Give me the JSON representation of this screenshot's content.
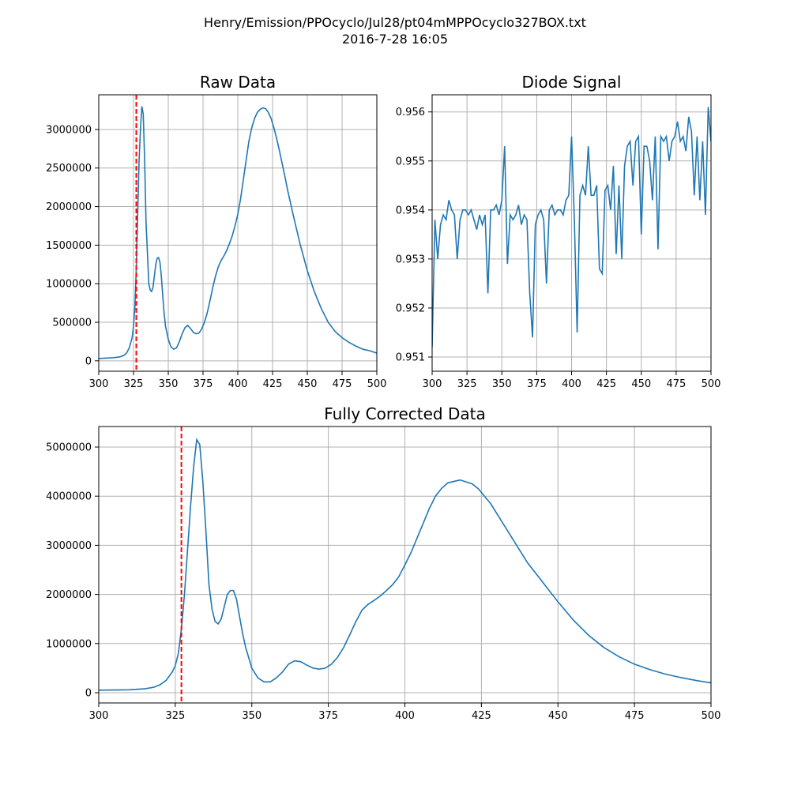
{
  "suptitle": [
    "Henry/Emission/PPOcyclo/Jul28/pt04mMPPOcyclo327BOX.txt",
    "2016-7-28     16:05"
  ],
  "chart_data": [
    {
      "type": "line",
      "title": "Raw Data",
      "color": "#1f77b4",
      "grid": true,
      "vline": {
        "x": 327,
        "color": "#ff0000"
      },
      "x": [
        300,
        310,
        315,
        318,
        320,
        322,
        324,
        325,
        326,
        327,
        328,
        329,
        330,
        331,
        332,
        333,
        334,
        335,
        336,
        337,
        338,
        339,
        340,
        341,
        342,
        343,
        344,
        345,
        346,
        347,
        348,
        350,
        352,
        354,
        356,
        358,
        360,
        362,
        364,
        366,
        368,
        370,
        372,
        374,
        376,
        378,
        380,
        382,
        384,
        386,
        388,
        390,
        392,
        394,
        396,
        398,
        400,
        402,
        404,
        406,
        408,
        410,
        412,
        414,
        416,
        418,
        420,
        422,
        424,
        426,
        428,
        430,
        432,
        434,
        436,
        438,
        440,
        445,
        450,
        455,
        460,
        465,
        470,
        475,
        480,
        485,
        490,
        495,
        500
      ],
      "values": [
        30000,
        40000,
        50000,
        70000,
        100000,
        170000,
        300000,
        450000,
        700000,
        1200000,
        1900000,
        2600000,
        3000000,
        3300000,
        3200000,
        2600000,
        1800000,
        1400000,
        1000000,
        920000,
        900000,
        950000,
        1100000,
        1250000,
        1330000,
        1340000,
        1280000,
        1100000,
        850000,
        620000,
        450000,
        280000,
        180000,
        150000,
        170000,
        250000,
        350000,
        430000,
        460000,
        420000,
        370000,
        350000,
        360000,
        410000,
        500000,
        620000,
        780000,
        950000,
        1100000,
        1220000,
        1300000,
        1360000,
        1430000,
        1520000,
        1620000,
        1750000,
        1900000,
        2100000,
        2350000,
        2600000,
        2850000,
        3020000,
        3140000,
        3220000,
        3260000,
        3280000,
        3270000,
        3220000,
        3140000,
        3020000,
        2880000,
        2720000,
        2550000,
        2380000,
        2200000,
        2040000,
        1880000,
        1500000,
        1170000,
        900000,
        680000,
        500000,
        380000,
        300000,
        240000,
        190000,
        150000,
        130000,
        100000
      ],
      "xlim": [
        300,
        500
      ],
      "xticks": [
        300,
        325,
        350,
        375,
        400,
        425,
        450,
        475,
        500
      ],
      "ylim": [
        -135000,
        3450000
      ],
      "yticks": [
        0,
        500000,
        1000000,
        1500000,
        2000000,
        2500000,
        3000000
      ]
    },
    {
      "type": "line",
      "title": "Diode Signal",
      "color": "#1f77b4",
      "grid": true,
      "x": [
        300,
        302,
        304,
        306,
        308,
        310,
        312,
        314,
        316,
        318,
        320,
        322,
        324,
        326,
        328,
        330,
        332,
        334,
        336,
        338,
        340,
        342,
        344,
        346,
        348,
        350,
        352,
        354,
        356,
        358,
        360,
        362,
        364,
        366,
        368,
        370,
        372,
        374,
        376,
        378,
        380,
        382,
        384,
        386,
        388,
        390,
        392,
        394,
        396,
        398,
        400,
        402,
        404,
        406,
        408,
        410,
        412,
        414,
        416,
        418,
        420,
        422,
        424,
        426,
        428,
        430,
        432,
        434,
        436,
        438,
        440,
        442,
        444,
        446,
        448,
        450,
        452,
        454,
        456,
        458,
        460,
        462,
        464,
        466,
        468,
        470,
        472,
        474,
        476,
        478,
        480,
        482,
        484,
        486,
        488,
        490,
        492,
        494,
        496,
        498,
        500
      ],
      "values": [
        0.9512,
        0.9538,
        0.953,
        0.9537,
        0.9539,
        0.9538,
        0.9542,
        0.954,
        0.9539,
        0.953,
        0.9538,
        0.954,
        0.954,
        0.9539,
        0.954,
        0.9538,
        0.9536,
        0.9539,
        0.9537,
        0.9539,
        0.9523,
        0.954,
        0.954,
        0.9541,
        0.9539,
        0.9542,
        0.9553,
        0.9529,
        0.9539,
        0.9538,
        0.9539,
        0.9541,
        0.9537,
        0.9539,
        0.9538,
        0.9523,
        0.9514,
        0.9537,
        0.9539,
        0.954,
        0.9538,
        0.9525,
        0.954,
        0.9541,
        0.9539,
        0.954,
        0.954,
        0.9539,
        0.9542,
        0.9543,
        0.9555,
        0.9538,
        0.9515,
        0.9543,
        0.9545,
        0.9543,
        0.9553,
        0.9543,
        0.9543,
        0.9545,
        0.9528,
        0.9527,
        0.9544,
        0.9545,
        0.954,
        0.9549,
        0.9531,
        0.9545,
        0.953,
        0.9549,
        0.9553,
        0.9554,
        0.9545,
        0.9554,
        0.9555,
        0.9535,
        0.9553,
        0.9553,
        0.955,
        0.9542,
        0.9555,
        0.9532,
        0.9555,
        0.9554,
        0.9555,
        0.955,
        0.9554,
        0.9555,
        0.9558,
        0.9554,
        0.9555,
        0.9552,
        0.9559,
        0.9556,
        0.9543,
        0.9555,
        0.9542,
        0.9554,
        0.9539,
        0.9561,
        0.9554
      ],
      "xlim": [
        300,
        500
      ],
      "xticks": [
        300,
        325,
        350,
        375,
        400,
        425,
        450,
        475,
        500
      ],
      "ylim": [
        0.95071,
        0.95635
      ],
      "yticks": [
        0.951,
        0.952,
        0.953,
        0.954,
        0.955,
        0.956
      ]
    },
    {
      "type": "line",
      "title": "Fully Corrected Data",
      "color": "#1f77b4",
      "grid": true,
      "vline": {
        "x": 327,
        "color": "#ff0000"
      },
      "x": [
        300,
        310,
        315,
        318,
        320,
        322,
        324,
        325,
        326,
        327,
        328,
        329,
        330,
        331,
        332,
        333,
        334,
        335,
        336,
        337,
        338,
        339,
        340,
        341,
        342,
        343,
        344,
        345,
        346,
        347,
        348,
        350,
        352,
        354,
        356,
        358,
        360,
        362,
        364,
        366,
        368,
        370,
        372,
        374,
        376,
        378,
        380,
        382,
        384,
        386,
        388,
        390,
        392,
        394,
        396,
        398,
        400,
        402,
        404,
        406,
        408,
        410,
        412,
        414,
        416,
        418,
        420,
        422,
        424,
        426,
        428,
        430,
        435,
        440,
        445,
        450,
        455,
        460,
        465,
        470,
        475,
        480,
        485,
        490,
        495,
        500
      ],
      "values": [
        50000,
        60000,
        80000,
        110000,
        160000,
        250000,
        420000,
        550000,
        800000,
        1300000,
        2000000,
        2900000,
        3800000,
        4600000,
        5150000,
        5050000,
        4300000,
        3300000,
        2200000,
        1700000,
        1450000,
        1400000,
        1500000,
        1750000,
        2000000,
        2080000,
        2080000,
        1900000,
        1550000,
        1200000,
        920000,
        500000,
        300000,
        220000,
        220000,
        300000,
        420000,
        580000,
        650000,
        630000,
        560000,
        500000,
        480000,
        500000,
        580000,
        720000,
        920000,
        1180000,
        1450000,
        1680000,
        1800000,
        1880000,
        1970000,
        2080000,
        2200000,
        2360000,
        2600000,
        2850000,
        3150000,
        3450000,
        3750000,
        4000000,
        4160000,
        4270000,
        4300000,
        4330000,
        4290000,
        4250000,
        4150000,
        4000000,
        3850000,
        3650000,
        3150000,
        2650000,
        2250000,
        1850000,
        1480000,
        1170000,
        920000,
        730000,
        580000,
        470000,
        380000,
        310000,
        250000,
        200000
      ],
      "xlim": [
        300,
        500
      ],
      "xticks": [
        300,
        325,
        350,
        375,
        400,
        425,
        450,
        475,
        500
      ],
      "ylim": [
        -209000,
        5418000
      ],
      "yticks": [
        0,
        1000000,
        2000000,
        3000000,
        4000000,
        5000000
      ]
    }
  ]
}
